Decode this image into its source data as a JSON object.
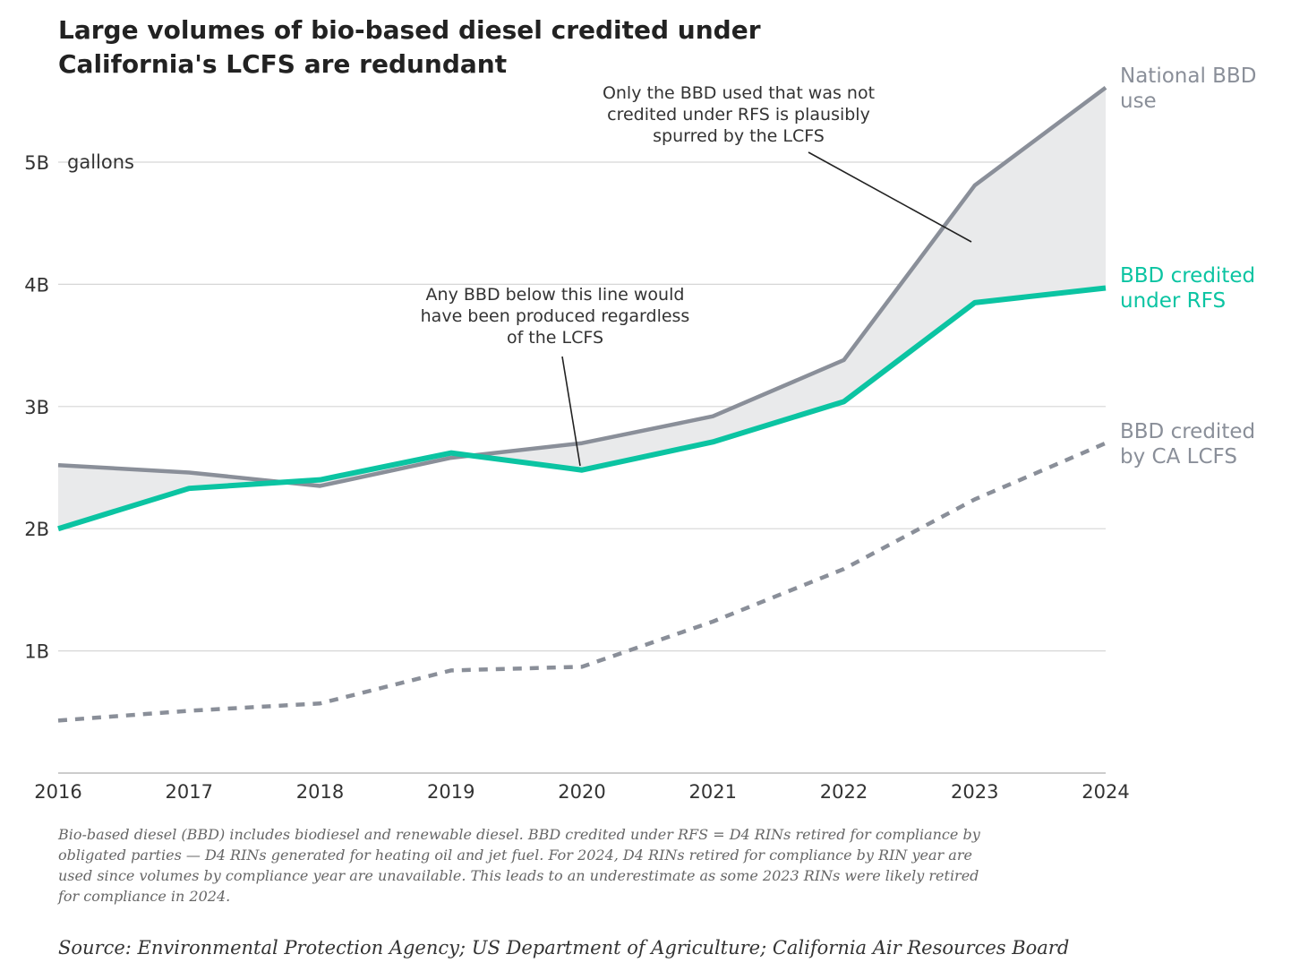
{
  "title_line1": "Large volumes of bio-based diesel credited under",
  "title_line2": "California's LCFS are redundant",
  "unit_label": "gallons",
  "annotations": {
    "top": [
      "Only the BBD used that was not",
      "credited under RFS is plausibly",
      "spurred by the LCFS"
    ],
    "middle": [
      "Any BBD below this line would",
      "have been produced regardless",
      "of the LCFS"
    ]
  },
  "series_labels": {
    "national": [
      "National BBD",
      "use"
    ],
    "rfs": [
      "BBD credited",
      "under RFS"
    ],
    "lcfs": [
      "BBD credited",
      "by CA LCFS"
    ]
  },
  "footnote": "Bio-based diesel (BBD) includes biodiesel and renewable diesel. BBD credited under RFS = D4 RINs retired for compliance by obligated parties — D4 RINs generated for heating oil and jet fuel. For 2024, D4 RINs retired for compliance by RIN year are used since volumes by compliance year are unavailable. This leads to an underestimate as some 2023 RINs were likely retired for compliance in 2024.",
  "source": "Source: Environmental Protection Agency; US Department of Agriculture; California Air Resources Board",
  "chart_data": {
    "type": "line",
    "title": "Large volumes of bio-based diesel credited under California's LCFS are redundant",
    "xlabel": "",
    "ylabel": "gallons",
    "x": [
      2016,
      2017,
      2018,
      2019,
      2020,
      2021,
      2022,
      2023,
      2024
    ],
    "x_tick_labels": [
      "2016",
      "2017",
      "2018",
      "2019",
      "2020",
      "2021",
      "2022",
      "2023",
      "2024"
    ],
    "y_ticks": [
      1,
      2,
      3,
      4,
      5
    ],
    "y_tick_labels": [
      "1B",
      "2B",
      "3B",
      "4B",
      "5B"
    ],
    "ylim": [
      0,
      5.6
    ],
    "grid": true,
    "series": [
      {
        "name": "National BBD use",
        "color": "#8a8f99",
        "style": "solid",
        "values": [
          2.52,
          2.46,
          2.35,
          2.58,
          2.7,
          2.92,
          3.38,
          4.81,
          5.61
        ]
      },
      {
        "name": "BBD credited under RFS",
        "color": "#0bc4a2",
        "style": "solid",
        "values": [
          2.0,
          2.33,
          2.4,
          2.62,
          2.48,
          2.71,
          3.04,
          3.85,
          3.97
        ]
      },
      {
        "name": "BBD credited by CA LCFS",
        "color": "#8a8f99",
        "style": "dashed",
        "values": [
          0.43,
          0.51,
          0.57,
          0.84,
          0.87,
          1.24,
          1.67,
          2.24,
          2.7
        ]
      }
    ],
    "shaded_area": "between National BBD use and BBD credited under RFS",
    "shade_color": "#e9eaeb"
  }
}
